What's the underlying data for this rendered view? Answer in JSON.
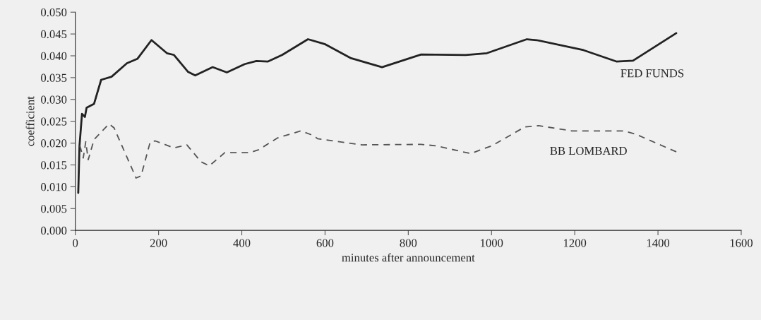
{
  "chart_data": {
    "type": "line",
    "xlabel": "minutes after announcement",
    "ylabel": "coefficient",
    "xlim": [
      0,
      1600
    ],
    "xticks": [
      0,
      200,
      400,
      600,
      800,
      1000,
      1200,
      1400,
      1600
    ],
    "ylim": [
      0,
      0.05
    ],
    "yticks": [
      {
        "value": 0,
        "label": "0.000"
      },
      {
        "value": 0.005,
        "label": "0.005"
      },
      {
        "value": 0.01,
        "label": "0.010"
      },
      {
        "value": 0.015,
        "label": "0.015"
      },
      {
        "value": 0.02,
        "label": "0.020"
      },
      {
        "value": 0.025,
        "label": "0.025"
      },
      {
        "value": 0.03,
        "label": "0.030"
      },
      {
        "value": 0.035,
        "label": "0.035"
      },
      {
        "value": 0.04,
        "label": "0.040"
      },
      {
        "value": 0.045,
        "label": "0.045"
      },
      {
        "value": 0.05,
        "label": "0.050"
      }
    ],
    "grid": false,
    "legend": false,
    "marker": "none",
    "series": [
      {
        "name": "FED FUNDS",
        "color": "#222222",
        "line_style": "solid",
        "x": [
          7,
          10,
          16,
          23,
          27,
          45,
          62,
          87,
          124,
          149,
          183,
          220,
          237,
          271,
          288,
          330,
          364,
          407,
          435,
          463,
          497,
          559,
          599,
          661,
          737,
          831,
          938,
          989,
          1085,
          1108,
          1221,
          1300,
          1340,
          1444
        ],
        "values": [
          0.0086,
          0.0194,
          0.0267,
          0.026,
          0.0281,
          0.029,
          0.0345,
          0.0352,
          0.0383,
          0.0393,
          0.0436,
          0.0406,
          0.0402,
          0.0363,
          0.0355,
          0.0374,
          0.0362,
          0.0381,
          0.0388,
          0.0387,
          0.0402,
          0.0438,
          0.0427,
          0.0395,
          0.0374,
          0.0403,
          0.0402,
          0.0406,
          0.0438,
          0.0436,
          0.0413,
          0.0387,
          0.0389,
          0.0452
        ]
      },
      {
        "name": "BB LOMBARD",
        "color": "#555555",
        "line_style": "dashed",
        "x": [
          11,
          19,
          25,
          31,
          45,
          81,
          93,
          146,
          158,
          180,
          192,
          237,
          268,
          302,
          322,
          359,
          418,
          441,
          486,
          542,
          573,
          582,
          689,
          831,
          865,
          950,
          1001,
          1080,
          1113,
          1193,
          1317,
          1345,
          1444
        ],
        "values": [
          0.0194,
          0.0166,
          0.0203,
          0.0162,
          0.0208,
          0.0244,
          0.0235,
          0.012,
          0.0125,
          0.0203,
          0.0205,
          0.0189,
          0.0196,
          0.0157,
          0.0148,
          0.0178,
          0.0178,
          0.0185,
          0.0212,
          0.0228,
          0.0217,
          0.021,
          0.0196,
          0.0197,
          0.0194,
          0.0176,
          0.0194,
          0.0237,
          0.024,
          0.0228,
          0.0228,
          0.0221,
          0.018
        ]
      }
    ]
  }
}
